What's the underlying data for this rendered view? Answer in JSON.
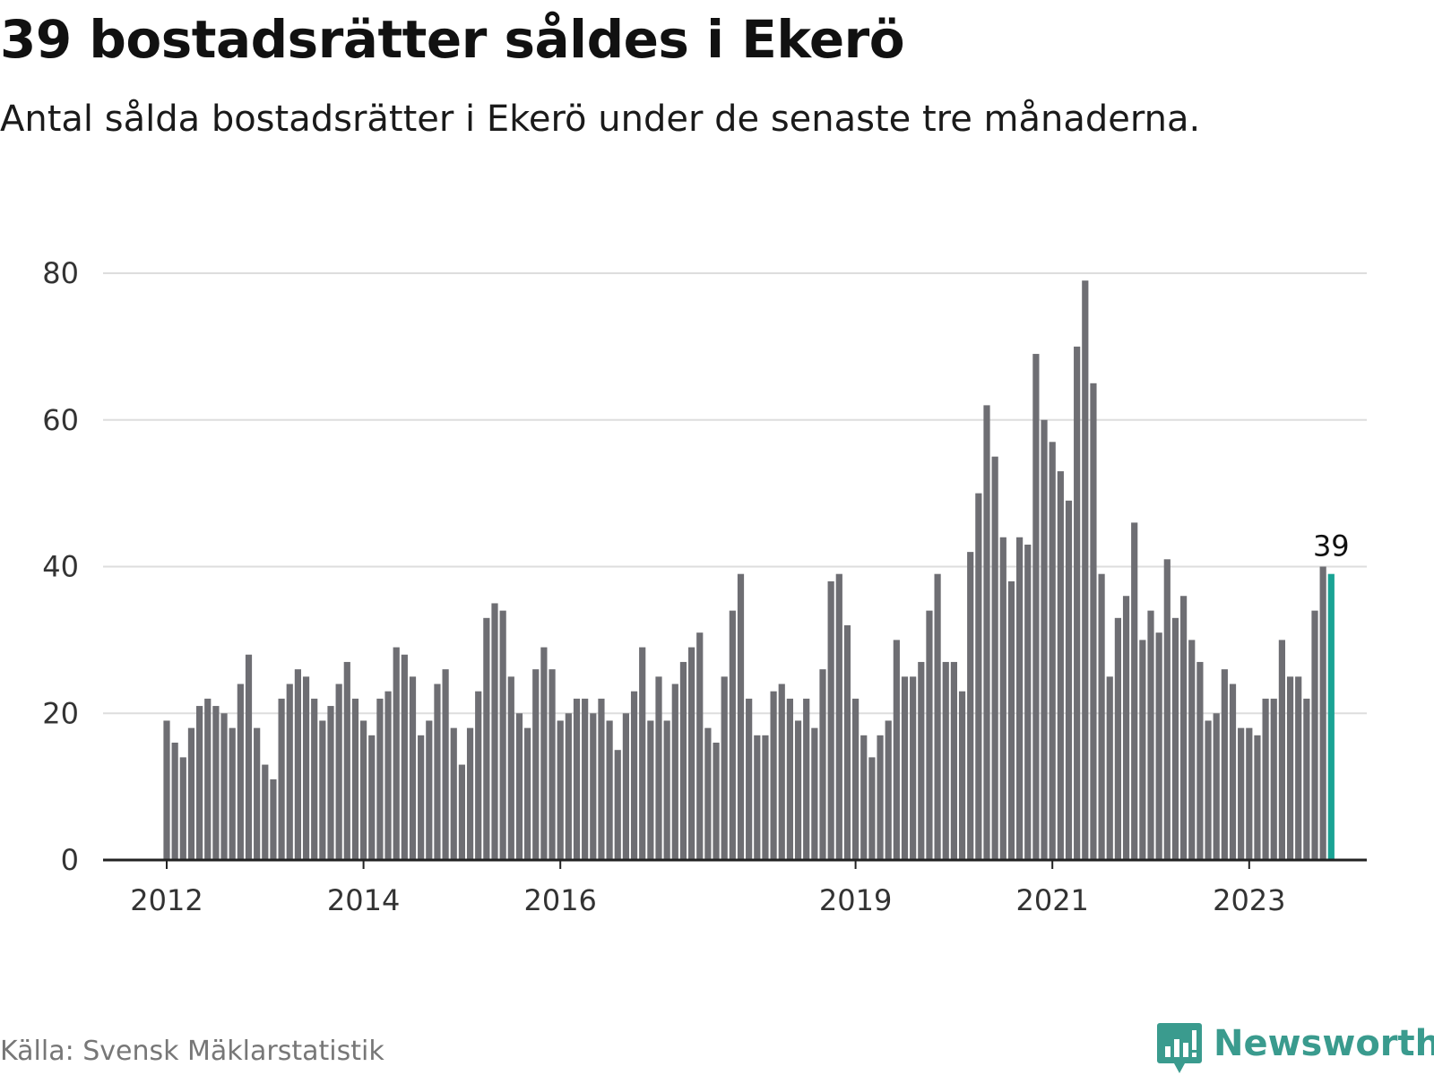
{
  "title": "39 bostadsrätter såldes i Ekerö",
  "subtitle": "Antal sålda bostadsrätter i Ekerö under de senaste tre månaderna.",
  "source": "Källa: Svensk Mäklarstatistik",
  "brand": {
    "name": "Newsworthy",
    "icon": "newsworthy-logo-icon",
    "color": "#3a9b8e"
  },
  "colors": {
    "bar": "#6e6e73",
    "highlight": "#1aa394",
    "grid": "#dddddd",
    "axis": "#222222"
  },
  "chart_data": {
    "type": "bar",
    "title": "39 bostadsrätter såldes i Ekerö",
    "xlabel": "",
    "ylabel": "",
    "ylim": [
      0,
      80
    ],
    "yticks": [
      0,
      20,
      40,
      60,
      80
    ],
    "xticks": [
      {
        "label": "2012",
        "index": 0
      },
      {
        "label": "2014",
        "index": 24
      },
      {
        "label": "2016",
        "index": 48
      },
      {
        "label": "2019",
        "index": 84
      },
      {
        "label": "2021",
        "index": 108
      },
      {
        "label": "2023",
        "index": 132
      }
    ],
    "grid": true,
    "highlight_last": true,
    "last_label": "39",
    "values": [
      19,
      16,
      14,
      18,
      21,
      22,
      21,
      20,
      18,
      24,
      28,
      18,
      13,
      11,
      22,
      24,
      26,
      25,
      22,
      19,
      21,
      24,
      27,
      22,
      19,
      17,
      22,
      23,
      29,
      28,
      25,
      17,
      19,
      24,
      26,
      18,
      13,
      18,
      23,
      33,
      35,
      34,
      25,
      20,
      18,
      26,
      29,
      26,
      19,
      20,
      22,
      22,
      20,
      22,
      19,
      15,
      20,
      23,
      29,
      19,
      25,
      19,
      24,
      27,
      29,
      31,
      18,
      16,
      25,
      34,
      39,
      22,
      17,
      17,
      23,
      24,
      22,
      19,
      22,
      18,
      26,
      38,
      39,
      32,
      22,
      17,
      14,
      17,
      19,
      30,
      25,
      25,
      27,
      34,
      39,
      27,
      27,
      23,
      42,
      50,
      62,
      55,
      44,
      38,
      44,
      43,
      69,
      60,
      57,
      53,
      49,
      70,
      79,
      65,
      39,
      25,
      33,
      36,
      46,
      30,
      34,
      31,
      41,
      33,
      36,
      30,
      27,
      19,
      20,
      26,
      24,
      18,
      18,
      17,
      22,
      22,
      30,
      25,
      25,
      22,
      34,
      40,
      39
    ]
  }
}
